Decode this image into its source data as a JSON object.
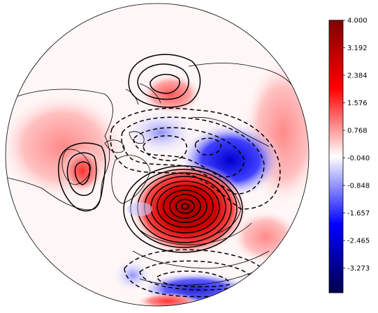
{
  "colorbar": {
    "tick_labels": [
      "4.000",
      "3.192",
      "2.384",
      "1.576",
      "0.768",
      "-0.040",
      "-0.848",
      "-1.657",
      "-2.465",
      "-3.273"
    ],
    "tick_values": [
      4.0,
      3.192,
      2.384,
      1.576,
      0.768,
      -0.04,
      -0.848,
      -1.657,
      -2.465,
      -3.273
    ],
    "range": [
      -4.0,
      4.0
    ],
    "colormap": "seismic",
    "colors": {
      "min": "#00004c",
      "neg": "#0000ff",
      "zero": "#ffffff",
      "pos": "#ff0000",
      "max": "#800000"
    }
  },
  "map": {
    "projection": "north-polar-stereographic",
    "shading": "anomaly field (blue negative, red positive)",
    "contours": "solid positive, dashed negative",
    "coastline_color": "#000000"
  }
}
